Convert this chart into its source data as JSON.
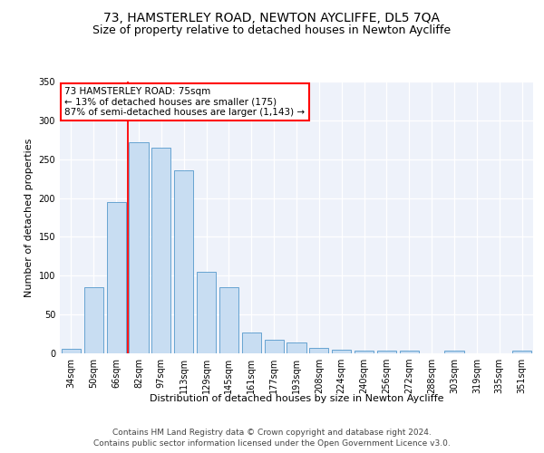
{
  "title": "73, HAMSTERLEY ROAD, NEWTON AYCLIFFE, DL5 7QA",
  "subtitle": "Size of property relative to detached houses in Newton Aycliffe",
  "xlabel": "Distribution of detached houses by size in Newton Aycliffe",
  "ylabel": "Number of detached properties",
  "categories": [
    "34sqm",
    "50sqm",
    "66sqm",
    "82sqm",
    "97sqm",
    "113sqm",
    "129sqm",
    "145sqm",
    "161sqm",
    "177sqm",
    "193sqm",
    "208sqm",
    "224sqm",
    "240sqm",
    "256sqm",
    "272sqm",
    "288sqm",
    "303sqm",
    "319sqm",
    "335sqm",
    "351sqm"
  ],
  "values": [
    6,
    85,
    195,
    272,
    265,
    236,
    105,
    85,
    27,
    18,
    14,
    7,
    5,
    3,
    3,
    3,
    0,
    3,
    0,
    0,
    3
  ],
  "bar_color": "#c8ddf2",
  "bar_edge_color": "#5599cc",
  "vline_x": 2.5,
  "vline_color": "red",
  "annotation_text": "73 HAMSTERLEY ROAD: 75sqm\n← 13% of detached houses are smaller (175)\n87% of semi-detached houses are larger (1,143) →",
  "annotation_box_color": "white",
  "annotation_box_edge": "red",
  "ylim": [
    0,
    350
  ],
  "yticks": [
    0,
    50,
    100,
    150,
    200,
    250,
    300,
    350
  ],
  "footer1": "Contains HM Land Registry data © Crown copyright and database right 2024.",
  "footer2": "Contains public sector information licensed under the Open Government Licence v3.0.",
  "bg_color": "#eef2fa",
  "title_fontsize": 10,
  "subtitle_fontsize": 9,
  "axis_label_fontsize": 8,
  "tick_fontsize": 7,
  "footer_fontsize": 6.5,
  "annotation_fontsize": 7.5
}
